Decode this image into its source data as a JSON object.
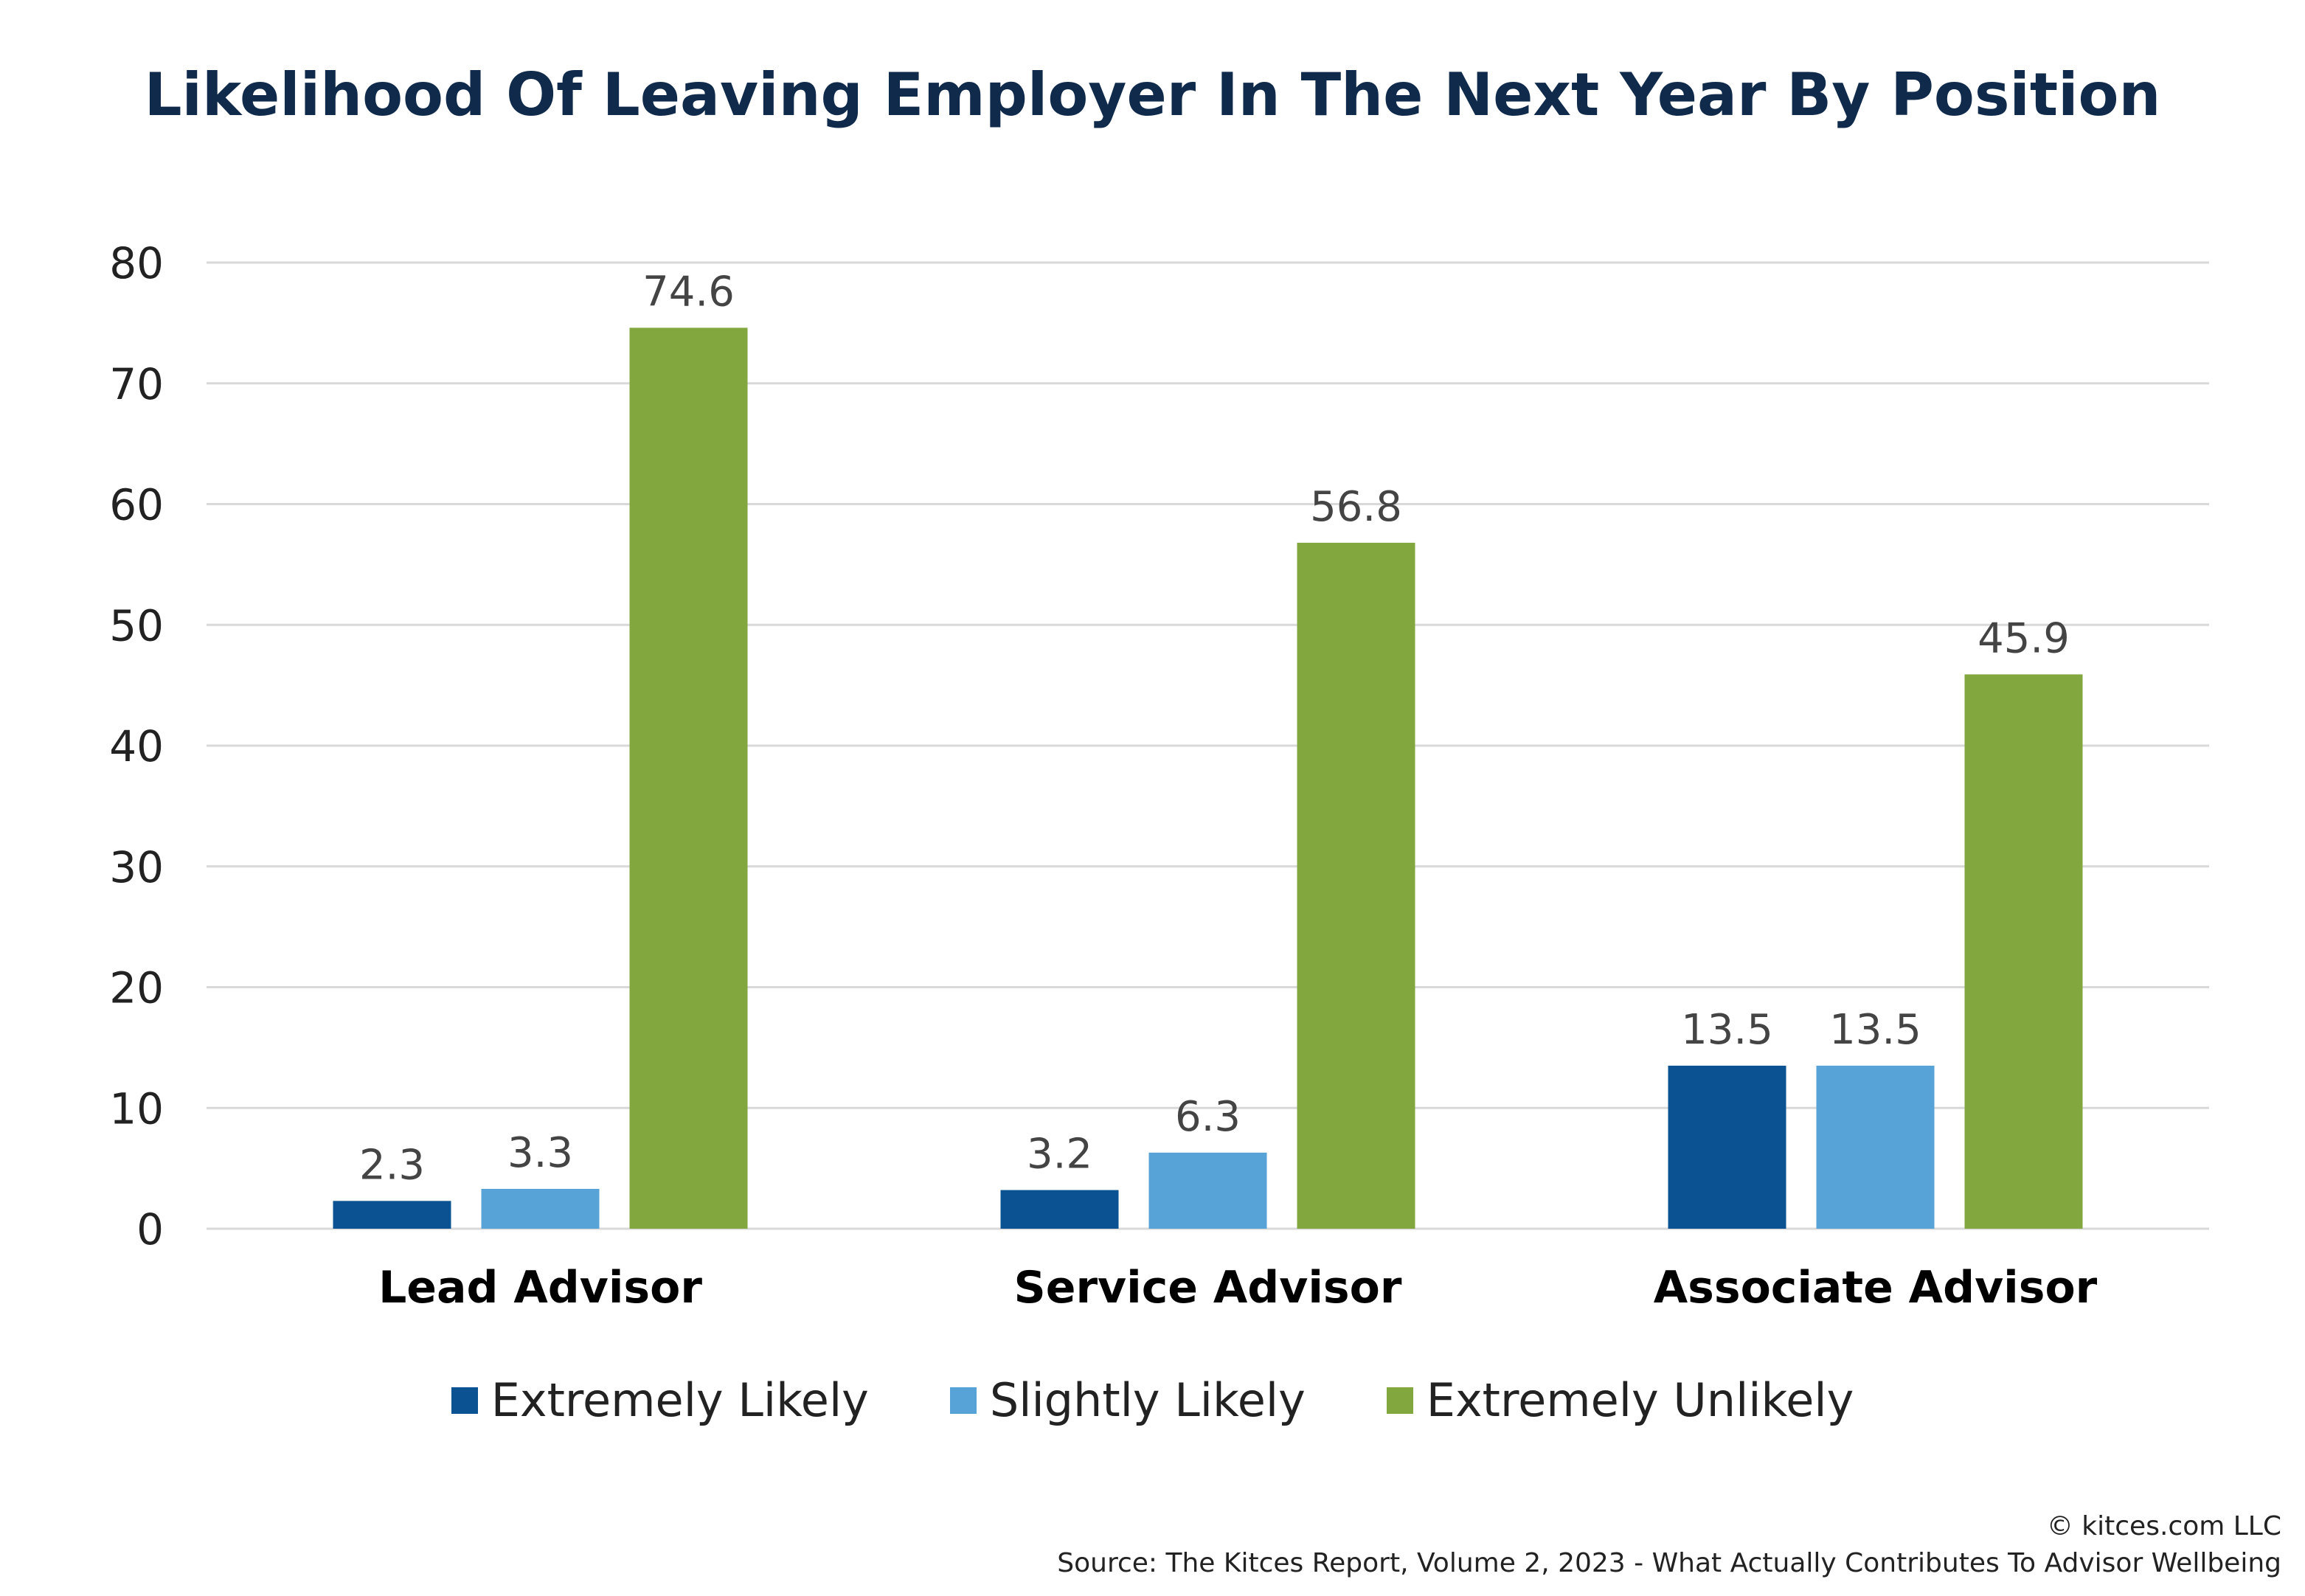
{
  "chart_data": {
    "type": "bar",
    "title": "Likelihood Of Leaving Employer In The Next Year By Position",
    "categories": [
      "Lead Advisor",
      "Service Advisor",
      "Associate Advisor"
    ],
    "series": [
      {
        "name": "Extremely Likely",
        "color": "#0a5291",
        "values": [
          2.3,
          3.2,
          13.5
        ]
      },
      {
        "name": "Slightly Likely",
        "color": "#57a3d7",
        "values": [
          3.3,
          6.3,
          13.5
        ]
      },
      {
        "name": "Extremely Unlikely",
        "color": "#82a73f",
        "values": [
          74.6,
          56.8,
          45.9
        ]
      }
    ],
    "value_labels": [
      [
        "2.3",
        "3.2",
        "13.5"
      ],
      [
        "3.3",
        "6.3",
        "13.5"
      ],
      [
        "74.6",
        "56.8",
        "45.9"
      ]
    ],
    "ylim": [
      0,
      80
    ],
    "yticks": [
      0,
      10,
      20,
      30,
      40,
      50,
      60,
      70,
      80
    ],
    "ytick_labels": [
      "0",
      "10",
      "20",
      "30",
      "40",
      "50",
      "60",
      "70",
      "80"
    ],
    "grid": true,
    "legend_position": "bottom-center",
    "xlabel": "",
    "ylabel": ""
  },
  "footer": {
    "copyright": "© kitces.com LLC",
    "source": "Source: The Kitces Report, Volume 2, 2023 - What Actually Contributes To Advisor Wellbeing"
  }
}
